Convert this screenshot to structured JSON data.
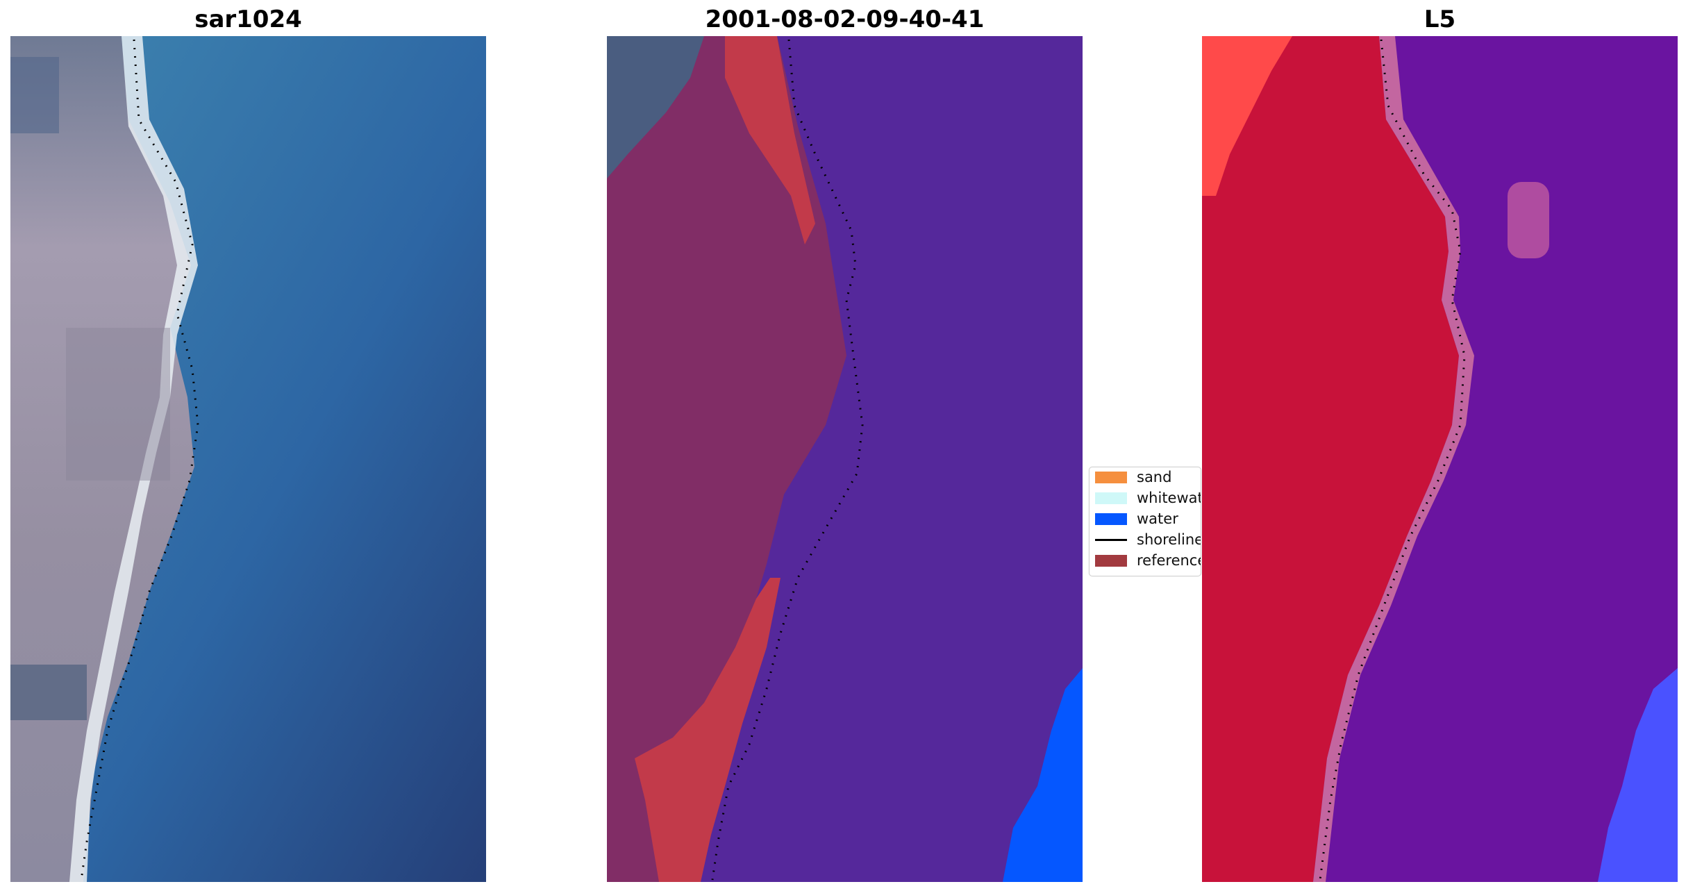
{
  "panels": [
    {
      "title": "sar1024",
      "kind": "rgb-image"
    },
    {
      "title": "2001-08-02-09-40-41",
      "kind": "classification"
    },
    {
      "title": "L5",
      "kind": "probability"
    }
  ],
  "legend": {
    "items": [
      {
        "label": "sand",
        "color": "#f58f3e",
        "kind": "patch"
      },
      {
        "label": "whitewater",
        "color": "#cff8f8",
        "kind": "patch"
      },
      {
        "label": "water",
        "color": "#0557ff",
        "kind": "patch"
      },
      {
        "label": "shoreline",
        "color": "#000000",
        "kind": "line"
      },
      {
        "label": "reference",
        "color": "#a23a3f",
        "kind": "patch"
      }
    ]
  },
  "colors": {
    "image_land": "#9b94a6",
    "image_sea": "#2e6aa6",
    "image_foam": "#eef4f6",
    "class_land": "#7f2f66",
    "class_sea": "#55289b",
    "class_reference": "#c23a4a",
    "class_water": "#0557ff",
    "prob_land": "#c8123a",
    "prob_sea": "#6a14a0",
    "prob_blue": "#4a52ff",
    "prob_red": "#ff4a4a"
  }
}
